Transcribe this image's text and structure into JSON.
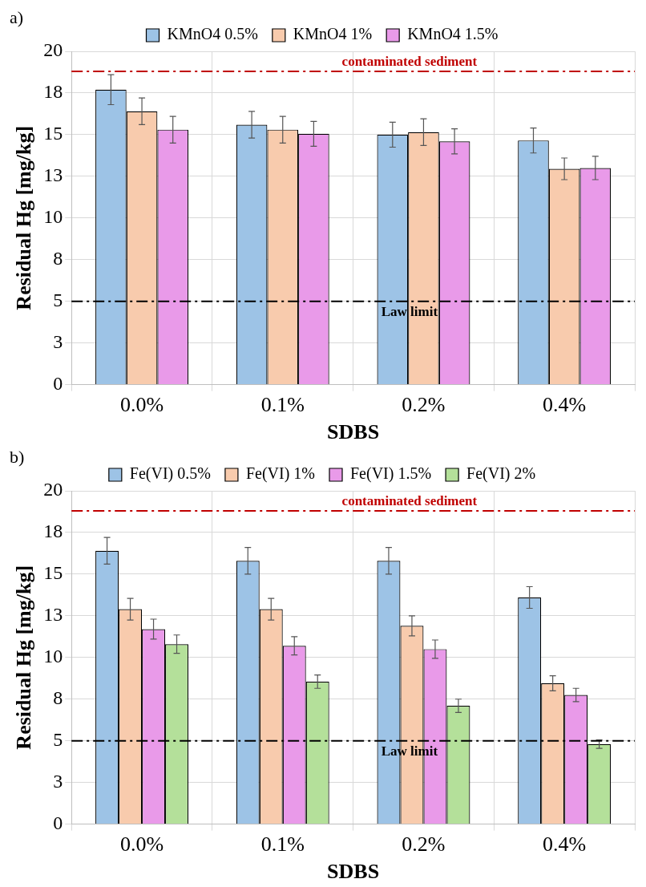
{
  "chart_data": [
    {
      "type": "bar",
      "annotations": [
        "a)"
      ],
      "xlabel": "SDBS",
      "ylabel": "Residual Hg [mg/kg]",
      "categories": [
        "0.0%",
        "0.1%",
        "0.2%",
        "0.4%"
      ],
      "series": [
        {
          "name": "KMnO4 0.5%",
          "color": "#9dc3e6",
          "values": [
            17.7,
            15.6,
            15.0,
            14.65
          ],
          "errors": [
            0.9,
            0.8,
            0.75,
            0.75
          ]
        },
        {
          "name": "KMnO4 1%",
          "color": "#f8cbad",
          "values": [
            16.4,
            15.3,
            15.15,
            12.95
          ],
          "errors": [
            0.8,
            0.8,
            0.8,
            0.65
          ]
        },
        {
          "name": "KMnO4 1.5%",
          "color": "#e99ae9",
          "values": [
            15.3,
            15.05,
            14.6,
            13.0
          ],
          "errors": [
            0.8,
            0.75,
            0.75,
            0.7
          ]
        }
      ],
      "ylim": [
        0,
        20
      ],
      "yticks": [
        0,
        {
          "value": 2.5,
          "label": "3"
        },
        5,
        {
          "value": 7.5,
          "label": "8"
        },
        10,
        {
          "value": 12.5,
          "label": "13"
        },
        15,
        {
          "value": 17.5,
          "label": "18"
        },
        20
      ],
      "ref_lines": [
        {
          "axis": "y",
          "value": 18.8,
          "label": "contaminated sediment",
          "color": "#c00000",
          "line_style": "dashed"
        },
        {
          "axis": "y",
          "value": 5,
          "label": "Law limit",
          "color": "#000000",
          "line_style": "dashed"
        }
      ],
      "grid": true,
      "legend": "top"
    },
    {
      "type": "bar",
      "annotations": [
        "b)"
      ],
      "xlabel": "SDBS",
      "ylabel": "Residual Hg [mg/kg]",
      "categories": [
        "0.0%",
        "0.1%",
        "0.2%",
        "0.4%"
      ],
      "series": [
        {
          "name": "Fe(VI) 0.5%",
          "color": "#9dc3e6",
          "values": [
            16.4,
            15.8,
            15.8,
            13.6
          ],
          "errors": [
            0.8,
            0.8,
            0.8,
            0.65
          ]
        },
        {
          "name": "Fe(VI) 1%",
          "color": "#f8cbad",
          "values": [
            12.9,
            12.9,
            11.9,
            8.45
          ],
          "errors": [
            0.65,
            0.65,
            0.6,
            0.45
          ]
        },
        {
          "name": "Fe(VI) 1.5%",
          "color": "#e99ae9",
          "values": [
            11.7,
            10.7,
            10.5,
            7.75
          ],
          "errors": [
            0.6,
            0.55,
            0.55,
            0.4
          ]
        },
        {
          "name": "Fe(VI) 2%",
          "color": "#b4e09a",
          "values": [
            10.8,
            8.55,
            7.1,
            4.8
          ],
          "errors": [
            0.55,
            0.4,
            0.4,
            0.25
          ]
        }
      ],
      "ylim": [
        0,
        20
      ],
      "yticks": [
        0,
        {
          "value": 2.5,
          "label": "3"
        },
        5,
        {
          "value": 7.5,
          "label": "8"
        },
        10,
        {
          "value": 12.5,
          "label": "13"
        },
        15,
        {
          "value": 17.5,
          "label": "18"
        },
        20
      ],
      "ref_lines": [
        {
          "axis": "y",
          "value": 18.8,
          "label": "contaminated sediment",
          "color": "#c00000",
          "line_style": "dashed"
        },
        {
          "axis": "y",
          "value": 5,
          "label": "Law limit",
          "color": "#000000",
          "line_style": "dashed"
        }
      ],
      "grid": true,
      "legend": "top"
    }
  ]
}
